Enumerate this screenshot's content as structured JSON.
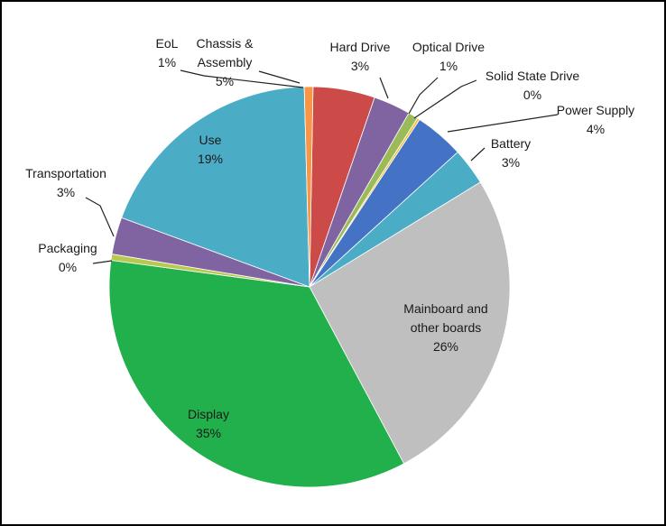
{
  "chart_data": {
    "type": "pie",
    "title": "",
    "start_angle_deg": 1,
    "direction": "clockwise",
    "slices": [
      {
        "name_lines": [
          "Chassis &",
          "Assembly"
        ],
        "value_label": "5%",
        "value": 5,
        "color": "#CC4B48"
      },
      {
        "name_lines": [
          "Hard Drive"
        ],
        "value_label": "3%",
        "value": 3,
        "color": "#8064A2"
      },
      {
        "name_lines": [
          "Optical Drive"
        ],
        "value_label": "1%",
        "value": 0.8,
        "color": "#9BBB59"
      },
      {
        "name_lines": [
          "Solid State Drive"
        ],
        "value_label": "0%",
        "value": 0.2,
        "color": "#F0C040"
      },
      {
        "name_lines": [
          "Power Supply"
        ],
        "value_label": "4%",
        "value": 4,
        "color": "#4472C4"
      },
      {
        "name_lines": [
          "Battery"
        ],
        "value_label": "3%",
        "value": 3,
        "color": "#4BACC6"
      },
      {
        "name_lines": [
          "Mainboard and",
          "other boards"
        ],
        "value_label": "26%",
        "value": 26,
        "color": "#BFBFBF"
      },
      {
        "name_lines": [
          "Display"
        ],
        "value_label": "35%",
        "value": 35,
        "color": "#21B04B"
      },
      {
        "name_lines": [
          "Packaging"
        ],
        "value_label": "0%",
        "value": 0.5,
        "color": "#B7C94F"
      },
      {
        "name_lines": [
          "Transportation"
        ],
        "value_label": "3%",
        "value": 3,
        "color": "#8064A2"
      },
      {
        "name_lines": [
          "Use"
        ],
        "value_label": "19%",
        "value": 19,
        "color": "#4BACC6"
      },
      {
        "name_lines": [
          "EoL"
        ],
        "value_label": "1%",
        "value": 0.7,
        "color": "#F79646"
      }
    ]
  }
}
